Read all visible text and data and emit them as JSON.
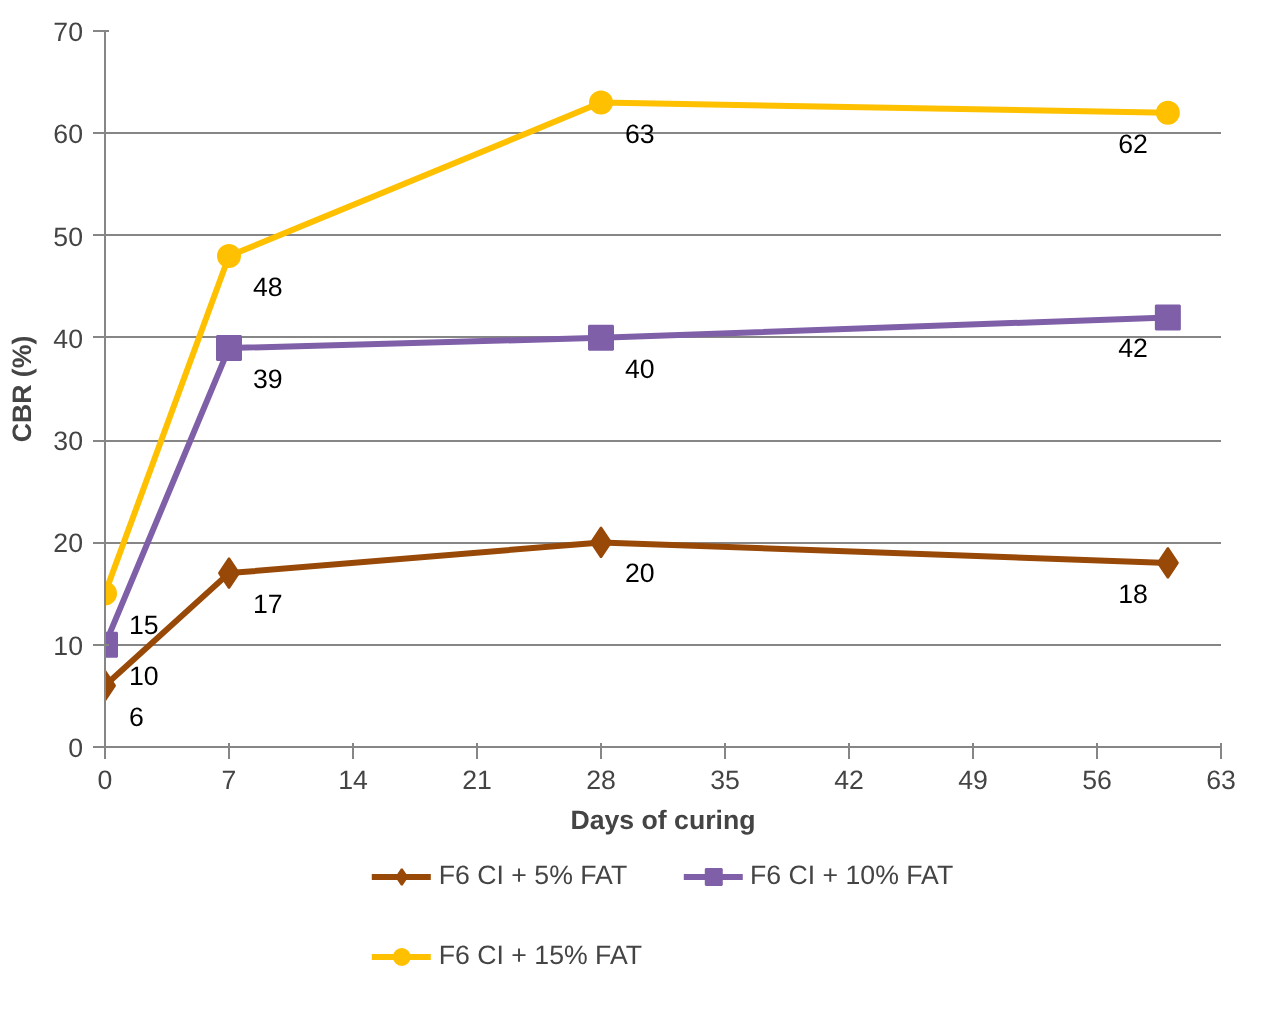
{
  "chart_data": {
    "type": "line",
    "xlabel": "Days of curing",
    "ylabel": "CBR (%)",
    "x": [
      0,
      7,
      28,
      60
    ],
    "xlim": [
      0,
      63
    ],
    "xticks": [
      0,
      7,
      14,
      21,
      28,
      35,
      42,
      49,
      56,
      63
    ],
    "ylim": [
      0,
      70
    ],
    "yticks": [
      0,
      10,
      20,
      30,
      40,
      50,
      60,
      70
    ],
    "grid": "y",
    "legend": "bottom",
    "data_labels": true,
    "series": [
      {
        "name": "F6 CI + 5% FAT",
        "color": "#984807",
        "marker": "diamond",
        "values": [
          6,
          17,
          20,
          18
        ]
      },
      {
        "name": "F6 CI + 10% FAT",
        "color": "#7f5fa8",
        "marker": "square",
        "values": [
          10,
          39,
          40,
          42
        ]
      },
      {
        "name": "F6 CI + 15% FAT",
        "color": "#ffc000",
        "marker": "circle",
        "values": [
          15,
          48,
          63,
          62
        ]
      }
    ]
  }
}
